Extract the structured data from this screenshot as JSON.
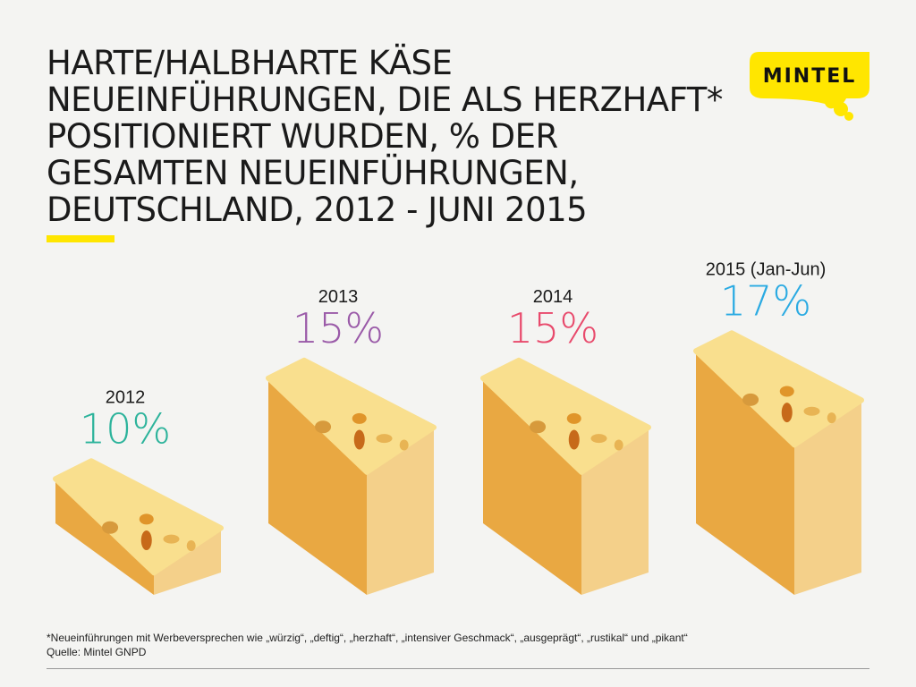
{
  "title": "HARTE/HALBHARTE KÄSE NEUEINFÜHRUNGEN, DIE ALS HERZHAFT* POSITIONIERT WURDEN, % DER GESAMTEN NEUEINFÜHRUNGEN, DEUTSCHLAND, 2012 - JUNI 2015",
  "logo": {
    "text": "MiNTEL",
    "color": "#ffe600"
  },
  "chart_data": {
    "type": "bar",
    "style": "pictogram (cheese blocks sized by value)",
    "categories": [
      "2012",
      "2013",
      "2014",
      "2015 (Jan-Jun)"
    ],
    "values": [
      10,
      15,
      15,
      17
    ],
    "data_labels": [
      "10%",
      "15%",
      "15%",
      "17%"
    ],
    "label_colors": [
      "#2cb39b",
      "#9a5aa8",
      "#e84a6c",
      "#2aaae2"
    ],
    "unit": "%",
    "grid": false
  },
  "footnote": {
    "note": "*Neueinführungen mit Werbeversprechen wie „würzig“, „deftig“, „herzhaft“, „intensiver Geschmack“, „ausgeprägt“, „rustikal“ und „pikant“",
    "source": "Quelle: Mintel GNPD"
  }
}
